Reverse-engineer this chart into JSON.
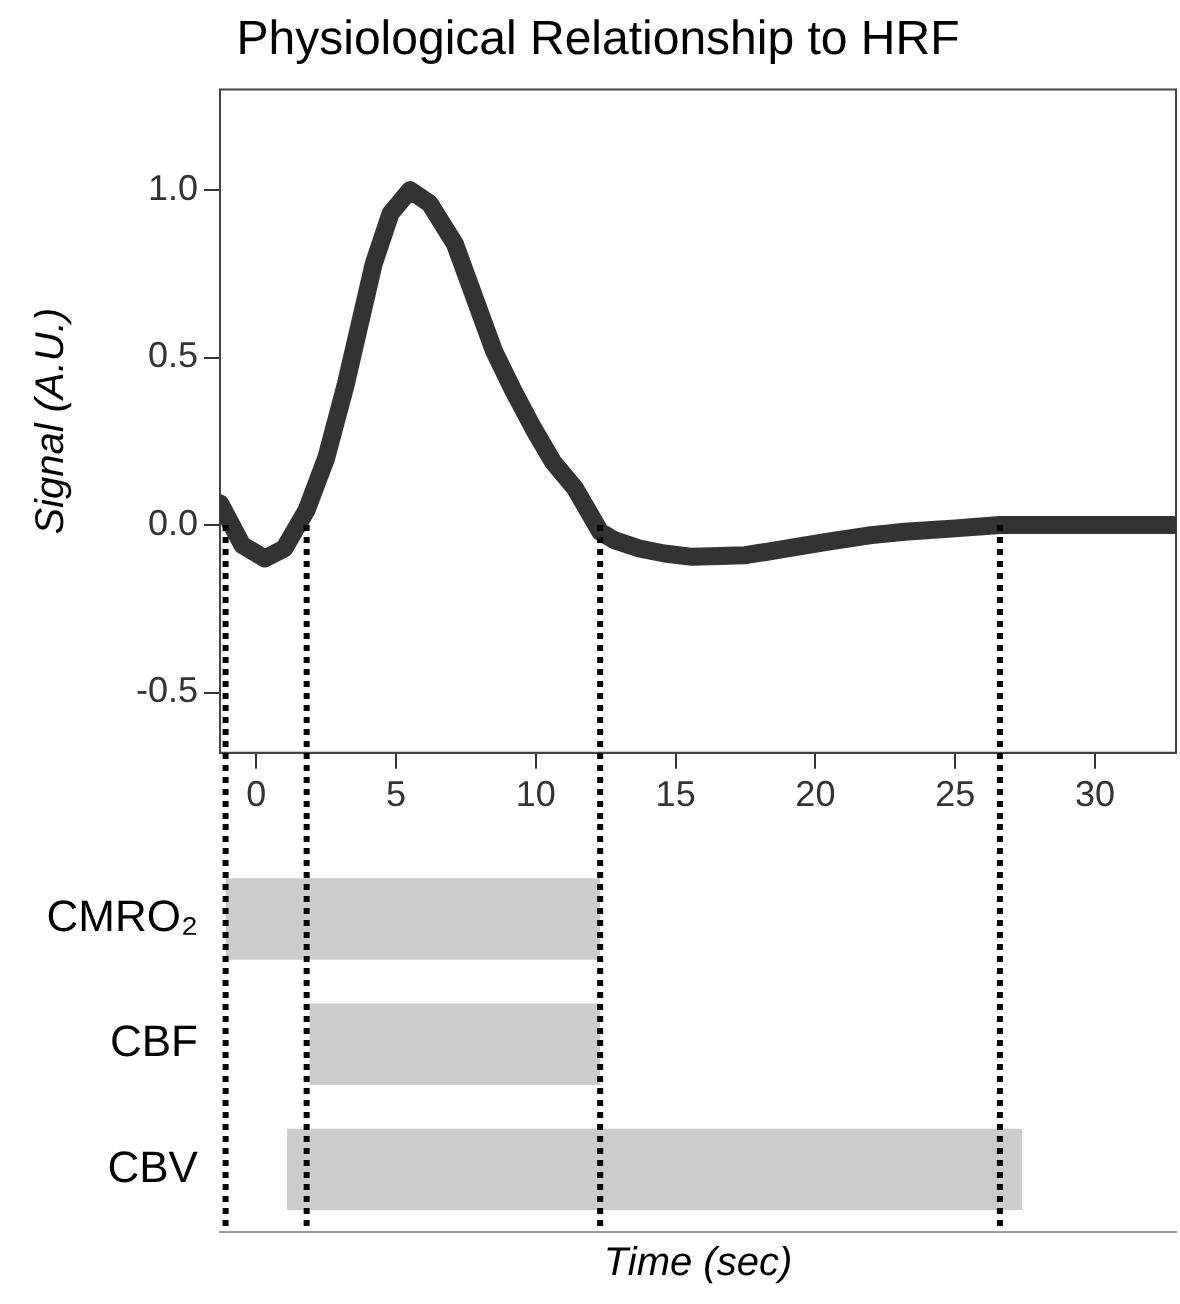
{
  "chart_data": [
    {
      "type": "line",
      "title": "Physiological Relationship to HRF",
      "ylabel": "Signal (A.U.)",
      "series": [
        {
          "color": "#333333",
          "x": [
            -1.3,
            -0.5,
            0.3,
            1.0,
            1.8,
            2.5,
            3.2,
            3.7,
            4.2,
            4.8,
            5.5,
            6.2,
            7.1,
            7.8,
            8.5,
            9.2,
            9.9,
            10.6,
            11.4,
            12.3,
            12.8,
            13.7,
            14.6,
            15.6,
            17.5,
            19.0,
            20.4,
            22.0,
            23.2,
            25.0,
            26.6,
            32.8
          ],
          "values": [
            0.065,
            -0.06,
            -0.1,
            -0.07,
            0.045,
            0.2,
            0.42,
            0.6,
            0.78,
            0.93,
            1.0,
            0.96,
            0.84,
            0.68,
            0.52,
            0.4,
            0.29,
            0.19,
            0.11,
            -0.02,
            -0.045,
            -0.07,
            -0.085,
            -0.095,
            -0.09,
            -0.07,
            -0.05,
            -0.03,
            -0.02,
            -0.01,
            0,
            0
          ]
        }
      ],
      "xlim": [
        -1.3,
        32.9
      ],
      "xticks": [
        0,
        5,
        10,
        15,
        20,
        25,
        30
      ],
      "ylim": [
        -0.68,
        1.3
      ],
      "yticks": [
        {
          "value": -0.5,
          "label": "-0.5"
        },
        {
          "value": 0,
          "label": "0.0"
        },
        {
          "value": 0.5,
          "label": "0.5"
        },
        {
          "value": 1,
          "label": "1.0"
        }
      ],
      "ref_lines": [
        {
          "axis": "x",
          "value": -1.1,
          "line_style": "dotted",
          "color": "#000000"
        },
        {
          "axis": "x",
          "value": 1.8,
          "line_style": "dotted",
          "color": "#000000"
        },
        {
          "axis": "x",
          "value": 12.3,
          "line_style": "dotted",
          "color": "#000000"
        },
        {
          "axis": "x",
          "value": 26.6,
          "line_style": "dotted",
          "color": "#000000"
        }
      ],
      "grid": false,
      "legend": false,
      "marker": "none",
      "line_style": "solid"
    },
    {
      "type": "bar",
      "orientation": "horizontal",
      "xlabel": "Time (sec)",
      "categories": [
        "CMRO₂",
        "CBF",
        "CBV"
      ],
      "base": [
        -1.1,
        1.9,
        1.1
      ],
      "values": [
        13.4,
        10.4,
        26.3
      ],
      "color": "#cccccc",
      "xlim": [
        -1.3,
        32.9
      ],
      "tick_labels": "y",
      "ref_lines": [
        {
          "axis": "x",
          "value": -1.1,
          "line_style": "dotted",
          "color": "#000000"
        },
        {
          "axis": "x",
          "value": 1.8,
          "line_style": "dotted",
          "color": "#000000"
        },
        {
          "axis": "x",
          "value": 12.3,
          "line_style": "dotted",
          "color": "#000000"
        },
        {
          "axis": "x",
          "value": 26.6,
          "line_style": "dotted",
          "color": "#000000"
        }
      ],
      "grid": false,
      "legend": false
    }
  ]
}
